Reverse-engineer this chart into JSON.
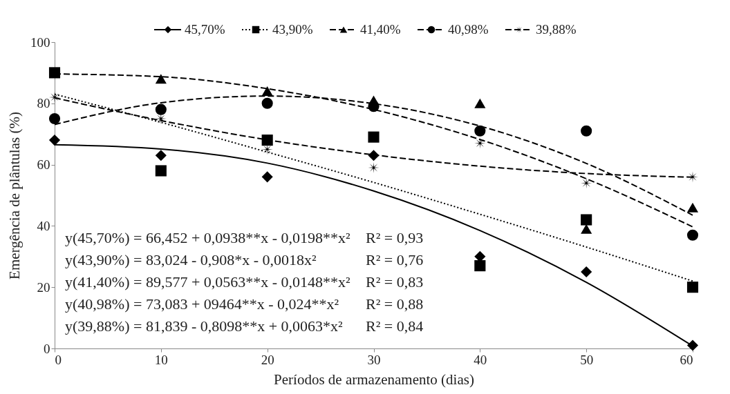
{
  "chart_data": {
    "type": "scatter",
    "xlabel": "Períodos de armazenamento (dias)",
    "ylabel": "Emergência de plântulas (%)",
    "x": [
      0,
      10,
      20,
      30,
      40,
      50,
      60
    ],
    "xlim": [
      0,
      60
    ],
    "xticks": [
      0,
      10,
      20,
      30,
      40,
      50,
      60
    ],
    "ylim": [
      0,
      100
    ],
    "yticks": [
      0,
      20,
      40,
      60,
      80,
      100
    ],
    "grid": false,
    "legend": "top",
    "series": [
      {
        "name": "45,70%",
        "marker": "diamond",
        "color": "#000000",
        "values": [
          68,
          63,
          56,
          63,
          30,
          25,
          1
        ]
      },
      {
        "type": "line",
        "line_style": "solid",
        "marker": "none",
        "color": "#000000",
        "x": [
          0,
          10,
          20,
          30,
          40,
          50,
          60
        ],
        "values": [
          66.5,
          65.1,
          60.5,
          51.4,
          38.5,
          21.6,
          0.8
        ]
      },
      {
        "name": "43,90%",
        "marker": "square",
        "color": "#000000",
        "values": [
          90,
          58,
          68,
          69,
          27,
          42,
          20
        ]
      },
      {
        "type": "line",
        "line_style": "dotted",
        "marker": "none",
        "color": "#000000",
        "x": [
          0,
          10,
          20,
          30,
          40,
          50,
          60
        ],
        "values": [
          83.0,
          73.8,
          64.1,
          54.2,
          43.8,
          33.1,
          22.0
        ]
      },
      {
        "name": "41,40%",
        "marker": "triangle",
        "color": "#000000",
        "values": [
          null,
          88,
          84,
          81,
          80,
          39,
          46
        ]
      },
      {
        "type": "line",
        "line_style": "dashed",
        "marker": "none",
        "color": "#000000",
        "x": [
          0,
          10,
          20,
          30,
          40,
          50,
          60
        ],
        "values": [
          89.6,
          88.7,
          84.8,
          78,
          68.2,
          55.4,
          39.7
        ]
      },
      {
        "name": "40,98%",
        "marker": "circle",
        "color": "#000000",
        "values": [
          75,
          78,
          80,
          79,
          71,
          71,
          37
        ]
      },
      {
        "type": "line",
        "line_style": "dashed",
        "marker": "none",
        "color": "#000000",
        "x": [
          0,
          10,
          20,
          30,
          40,
          50,
          60
        ],
        "values": [
          73.1,
          80.2,
          82.4,
          79.9,
          72.6,
          60.4,
          43.5
        ]
      },
      {
        "name": "39,88%",
        "marker": "cross",
        "color": "#000000",
        "values": [
          82,
          75,
          65,
          59,
          67,
          54,
          56
        ]
      },
      {
        "type": "line",
        "line_style": "dashed",
        "marker": "none",
        "color": "#000000",
        "x": [
          0,
          10,
          20,
          30,
          40,
          50,
          60
        ],
        "values": [
          81.8,
          74.4,
          68.1,
          63.2,
          59.5,
          57.1,
          55.9
        ]
      }
    ],
    "annotations": [
      "y(45,70%) = 66,452 + 0,0938**x - 0,0198**x²",
      "R² = 0,93",
      "y(43,90%) = 83,024 - 0,908*x - 0,0018x²",
      "R² = 0,76",
      "y(41,40%) = 89,577 + 0,0563**x - 0,0148**x²",
      "R² = 0,83",
      "y(40,98%) = 73,083 + 09464**x - 0,024**x²",
      "R² = 0,88",
      "y(39,88%) = 81,839 - 0,8098**x + 0,0063*x²",
      "R² = 0,84"
    ]
  }
}
